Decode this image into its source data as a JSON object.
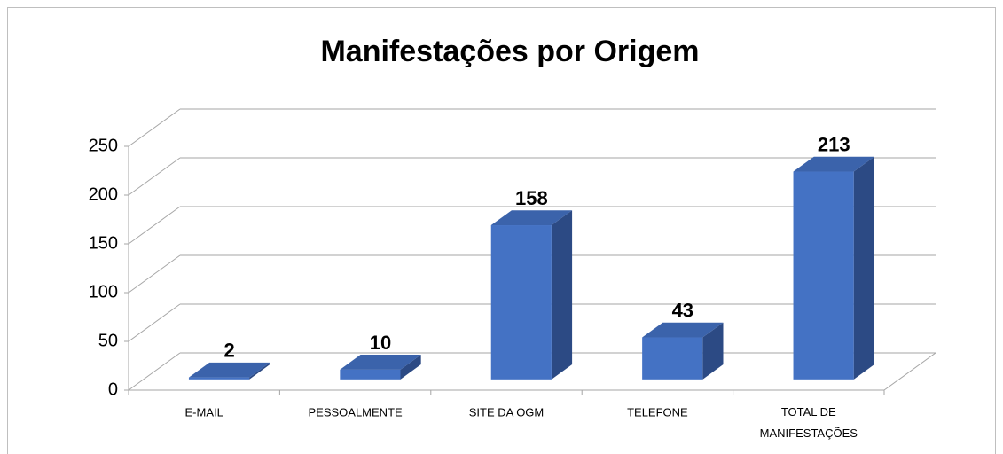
{
  "chart_data": {
    "type": "bar",
    "title": "Manifestações por Origem",
    "categories": [
      "E-MAIL",
      "PESSOALMENTE",
      "SITE DA OGM",
      "TELEFONE",
      "TOTAL DE MANIFESTAÇÕES"
    ],
    "values": [
      2,
      10,
      158,
      43,
      213
    ],
    "color": "#4472c4",
    "ylim": [
      0,
      250
    ],
    "yticks": [
      0,
      50,
      100,
      150,
      200,
      250
    ],
    "grid": true
  }
}
